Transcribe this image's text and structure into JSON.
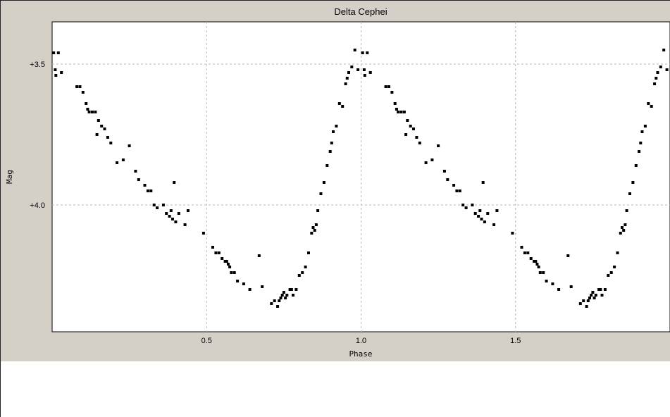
{
  "chart_data": {
    "type": "scatter",
    "title": "Delta Cephei",
    "xlabel": "Phase",
    "ylabel": "Mag",
    "xlim": [
      0.0,
      2.0
    ],
    "ylim": [
      3.35,
      4.45
    ],
    "y_inverted": true,
    "grid": true,
    "x_ticks": [
      {
        "value": 0.5,
        "label": "0.5"
      },
      {
        "value": 1.0,
        "label": "1.0"
      },
      {
        "value": 1.5,
        "label": "1.5"
      }
    ],
    "y_ticks": [
      {
        "value": 3.5,
        "label": "+3.5"
      },
      {
        "value": 4.0,
        "label": "+4.0"
      }
    ],
    "marker_color": "#000000",
    "period_shift": 1.0,
    "series": [
      {
        "x": [
          0.005,
          0.012,
          0.02,
          0.03,
          0.01,
          0.08,
          0.09,
          0.1,
          0.11,
          0.115,
          0.12,
          0.13,
          0.14,
          0.145,
          0.15,
          0.16,
          0.17,
          0.18,
          0.19,
          0.21,
          0.23,
          0.25,
          0.27,
          0.28,
          0.3,
          0.31,
          0.32,
          0.33,
          0.34,
          0.36,
          0.37,
          0.38,
          0.385,
          0.39,
          0.395,
          0.4,
          0.41,
          0.43,
          0.44,
          0.49,
          0.52,
          0.53,
          0.54,
          0.55,
          0.56,
          0.565,
          0.57,
          0.575,
          0.58,
          0.59,
          0.6,
          0.62,
          0.64,
          0.67,
          0.68,
          0.71,
          0.72,
          0.73,
          0.735,
          0.74,
          0.745,
          0.75,
          0.755,
          0.76,
          0.77,
          0.775,
          0.78,
          0.79,
          0.8,
          0.81,
          0.82,
          0.83,
          0.84,
          0.845,
          0.85,
          0.855,
          0.86,
          0.87,
          0.88,
          0.89,
          0.9,
          0.905,
          0.91,
          0.92,
          0.93,
          0.94,
          0.95,
          0.955,
          0.96,
          0.97,
          0.98,
          0.99
        ],
        "y": [
          3.46,
          3.54,
          3.46,
          3.53,
          3.52,
          3.58,
          3.58,
          3.6,
          3.64,
          3.66,
          3.67,
          3.67,
          3.67,
          3.75,
          3.7,
          3.72,
          3.73,
          3.76,
          3.78,
          3.85,
          3.84,
          3.79,
          3.88,
          3.91,
          3.93,
          3.95,
          3.95,
          4.0,
          4.01,
          4.0,
          4.03,
          4.04,
          4.02,
          4.05,
          3.92,
          4.06,
          4.03,
          4.07,
          4.02,
          4.1,
          4.15,
          4.17,
          4.17,
          4.19,
          4.2,
          4.2,
          4.21,
          4.22,
          4.24,
          4.24,
          4.27,
          4.28,
          4.3,
          4.18,
          4.29,
          4.35,
          4.34,
          4.36,
          4.34,
          4.33,
          4.32,
          4.31,
          4.33,
          4.32,
          4.3,
          4.3,
          4.32,
          4.3,
          4.25,
          4.24,
          4.22,
          4.17,
          4.1,
          4.08,
          4.09,
          4.07,
          4.02,
          3.96,
          3.92,
          3.86,
          3.81,
          3.78,
          3.74,
          3.72,
          3.64,
          3.65,
          3.57,
          3.55,
          3.53,
          3.51,
          3.45,
          3.52
        ]
      }
    ]
  }
}
